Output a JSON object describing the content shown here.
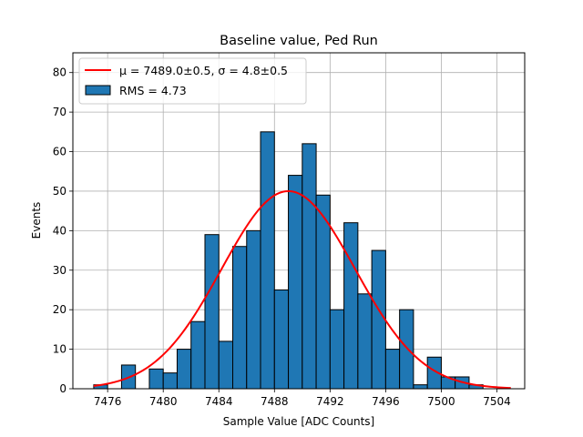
{
  "chart_data": {
    "type": "bar",
    "title": "Baseline value, Ped Run",
    "xlabel": "Sample Value [ADC Counts]",
    "ylabel": "Events",
    "xlim": [
      7473.5,
      7506.0
    ],
    "ylim": [
      0,
      85
    ],
    "xticks": [
      7476,
      7480,
      7484,
      7488,
      7492,
      7496,
      7500,
      7504
    ],
    "yticks": [
      0,
      10,
      20,
      30,
      40,
      50,
      60,
      70,
      80
    ],
    "grid": true,
    "legend_position": "top-left",
    "bins": {
      "start": 7475.0,
      "width": 1.0
    },
    "values": [
      1,
      0,
      6,
      0,
      5,
      4,
      10,
      17,
      39,
      12,
      36,
      40,
      65,
      25,
      54,
      62,
      49,
      20,
      42,
      24,
      35,
      10,
      20,
      1,
      8,
      3,
      3,
      1,
      0,
      0
    ],
    "series": [
      {
        "name": "histogram",
        "legend": "RMS = 4.73",
        "color": "#1f77b4",
        "edge_color": "#000000"
      },
      {
        "name": "gaussian-fit",
        "legend_mu": "μ = 7489.0±0.5",
        "legend_sep": ", ",
        "legend_sigma": "σ = 4.8±0.5",
        "color": "#ff0000",
        "mu": 7489.0,
        "sigma": 4.8,
        "amplitude": 50.0,
        "x_range": [
          7475.0,
          7505.0
        ]
      }
    ]
  }
}
